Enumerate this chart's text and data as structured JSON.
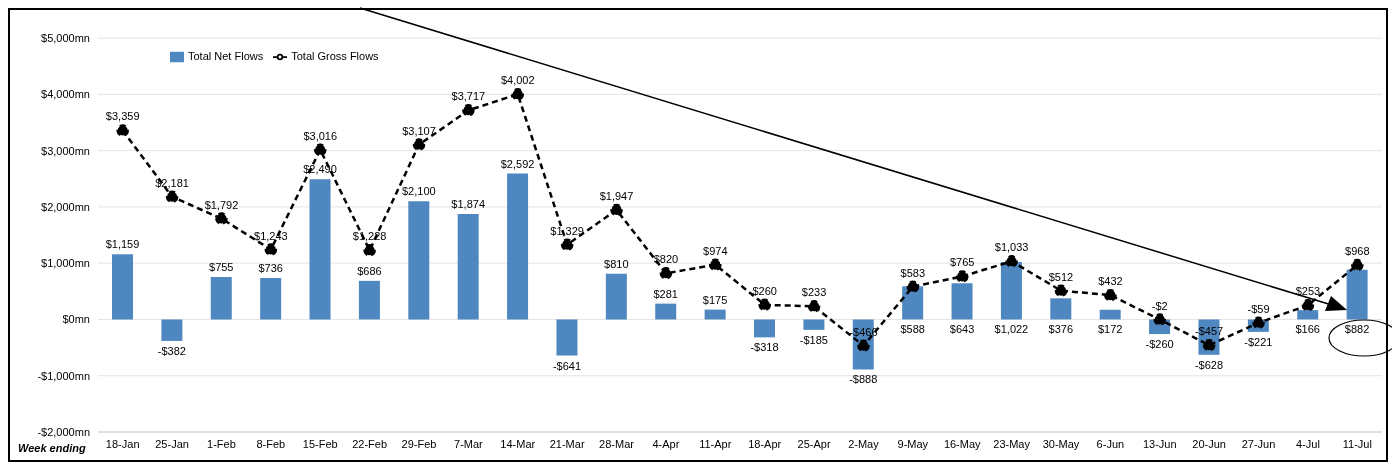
{
  "chart_data": {
    "type": "bar",
    "xlabel": "Week ending",
    "categories": [
      "18-Jan",
      "25-Jan",
      "1-Feb",
      "8-Feb",
      "15-Feb",
      "22-Feb",
      "29-Feb",
      "7-Mar",
      "14-Mar",
      "21-Mar",
      "28-Mar",
      "4-Apr",
      "11-Apr",
      "18-Apr",
      "25-Apr",
      "2-May",
      "9-May",
      "16-May",
      "23-May",
      "30-May",
      "6-Jun",
      "13-Jun",
      "20-Jun",
      "27-Jun",
      "4-Jul",
      "11-Jul"
    ],
    "series": [
      {
        "name": "Total Net Flows",
        "color": "#4f88c0",
        "values": [
          1159,
          -382,
          755,
          736,
          2490,
          686,
          2100,
          1874,
          2592,
          -641,
          810,
          281,
          175,
          -318,
          -185,
          -888,
          588,
          643,
          1022,
          376,
          172,
          -260,
          -628,
          -221,
          166,
          882
        ],
        "value_labels": [
          "$1,159",
          "-$382",
          "$755",
          "$736",
          "$2,490",
          "$686",
          "$2,100",
          "$1,874",
          "$2,592",
          "-$641",
          "$810",
          "$281",
          "$175",
          "-$318",
          "-$185",
          "-$888",
          "$588",
          "$643",
          "$1,022",
          "$376",
          "$172",
          "-$260",
          "-$628",
          "-$221",
          "$166",
          "$882"
        ]
      },
      {
        "name": "Total Gross Flows",
        "type": "line",
        "color": "#000000",
        "values": [
          3359,
          2181,
          1792,
          1243,
          3016,
          1228,
          3107,
          3717,
          4002,
          1329,
          1947,
          820,
          974,
          260,
          233,
          -466,
          583,
          765,
          1033,
          512,
          432,
          -2,
          -457,
          -59,
          253,
          968
        ],
        "value_labels": [
          "$3,359",
          "$2,181",
          "$1,792",
          "$1,243",
          "$3,016",
          "$1,228",
          "$3,107",
          "$3,717",
          "$4,002",
          "$1,329",
          "$1,947",
          "$820",
          "$974",
          "$260",
          "$233",
          "-$466",
          "$583",
          "$765",
          "$1,033",
          "$512",
          "$432",
          "-$2",
          "-$457",
          "-$59",
          "$253",
          "$968"
        ]
      }
    ],
    "ylim": [
      -2000,
      5000
    ],
    "yticks": [
      {
        "value": -2000,
        "label": "-$2,000mn"
      },
      {
        "value": -1000,
        "label": "-$1,000mn"
      },
      {
        "value": 0,
        "label": "$0mn"
      },
      {
        "value": 1000,
        "label": "$1,000mn"
      },
      {
        "value": 2000,
        "label": "$2,000mn"
      },
      {
        "value": 3000,
        "label": "$3,000mn"
      },
      {
        "value": 4000,
        "label": "$4,000mn"
      },
      {
        "value": 5000,
        "label": "$5,000mn"
      }
    ],
    "grid": "y",
    "legend": "top left",
    "marker": "circle",
    "line_style": "dashed"
  }
}
